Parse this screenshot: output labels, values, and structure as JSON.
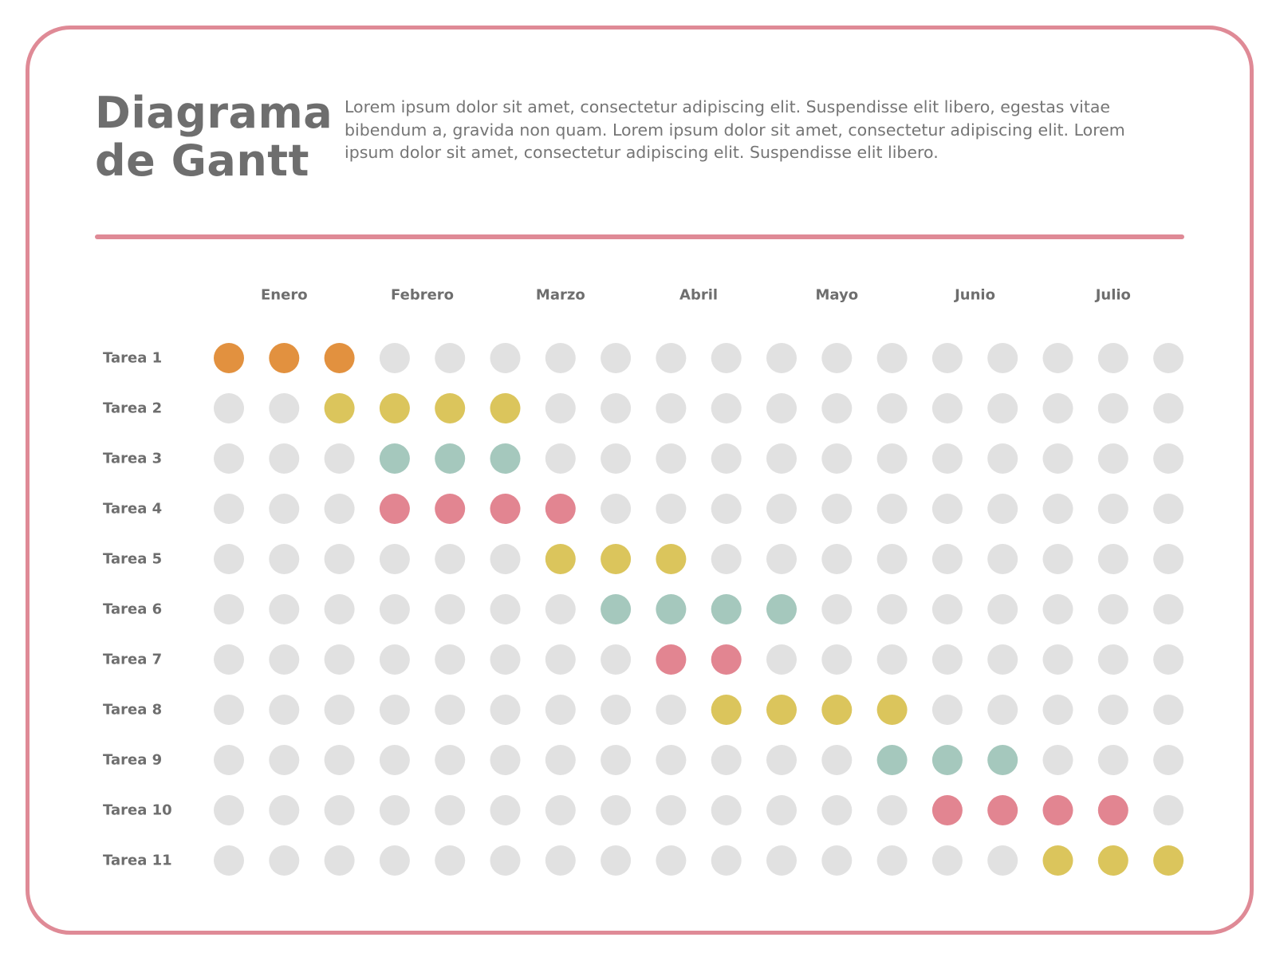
{
  "header": {
    "title": "Diagrama\nde Gantt",
    "description": "Lorem ipsum dolor sit amet, consectetur adipiscing elit. Suspendisse elit libero, egestas vitae bibendum a, gravida non quam. Lorem ipsum dolor sit amet, consectetur adipiscing elit. Lorem ipsum dolor sit amet, consectetur adipiscing elit. Suspendisse elit libero."
  },
  "colors": {
    "frame": "#df8a96",
    "inactive": "#e1e1e1",
    "orange": "#e2913f",
    "yellow": "#dbc55c",
    "teal": "#a5c8bd",
    "pink": "#e28591"
  },
  "chart_data": {
    "type": "table",
    "months": [
      "Enero",
      "Febrero",
      "Marzo",
      "Abril",
      "Mayo",
      "Junio",
      "Julio"
    ],
    "periods": 18,
    "tasks": [
      {
        "name": "Tarea 1",
        "start": 1,
        "end": 3,
        "color": "orange"
      },
      {
        "name": "Tarea 2",
        "start": 3,
        "end": 6,
        "color": "yellow"
      },
      {
        "name": "Tarea 3",
        "start": 4,
        "end": 6,
        "color": "teal"
      },
      {
        "name": "Tarea 4",
        "start": 4,
        "end": 7,
        "color": "pink"
      },
      {
        "name": "Tarea 5",
        "start": 7,
        "end": 9,
        "color": "yellow"
      },
      {
        "name": "Tarea 6",
        "start": 8,
        "end": 11,
        "color": "teal"
      },
      {
        "name": "Tarea 7",
        "start": 9,
        "end": 10,
        "color": "pink"
      },
      {
        "name": "Tarea 8",
        "start": 10,
        "end": 13,
        "color": "yellow"
      },
      {
        "name": "Tarea 9",
        "start": 13,
        "end": 15,
        "color": "teal"
      },
      {
        "name": "Tarea 10",
        "start": 14,
        "end": 17,
        "color": "pink"
      },
      {
        "name": "Tarea 11",
        "start": 16,
        "end": 18,
        "color": "yellow"
      }
    ]
  }
}
